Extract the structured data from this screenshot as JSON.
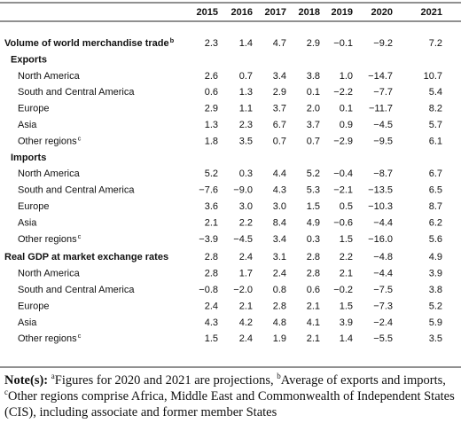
{
  "table": {
    "columns": [
      "2015",
      "2016",
      "2017",
      "2018",
      "2019",
      "2020",
      "2021"
    ],
    "sections": [
      {
        "label": "Volume of world merchandise trade",
        "note": "b",
        "values": [
          "2.3",
          "1.4",
          "4.7",
          "2.9",
          "−0.1",
          "−9.2",
          "7.2"
        ],
        "groups": [
          {
            "label": "Exports",
            "rows": [
              {
                "label": "North America",
                "values": [
                  "2.6",
                  "0.7",
                  "3.4",
                  "3.8",
                  "1.0",
                  "−14.7",
                  "10.7"
                ]
              },
              {
                "label": "South and Central America",
                "values": [
                  "0.6",
                  "1.3",
                  "2.9",
                  "0.1",
                  "−2.2",
                  "−7.7",
                  "5.4"
                ]
              },
              {
                "label": "Europe",
                "values": [
                  "2.9",
                  "1.1",
                  "3.7",
                  "2.0",
                  "0.1",
                  "−11.7",
                  "8.2"
                ]
              },
              {
                "label": "Asia",
                "values": [
                  "1.3",
                  "2.3",
                  "6.7",
                  "3.7",
                  "0.9",
                  "−4.5",
                  "5.7"
                ]
              },
              {
                "label": "Other regions",
                "note": "c",
                "values": [
                  "1.8",
                  "3.5",
                  "0.7",
                  "0.7",
                  "−2.9",
                  "−9.5",
                  "6.1"
                ]
              }
            ]
          },
          {
            "label": "Imports",
            "rows": [
              {
                "label": "North America",
                "values": [
                  "5.2",
                  "0.3",
                  "4.4",
                  "5.2",
                  "−0.4",
                  "−8.7",
                  "6.7"
                ]
              },
              {
                "label": "South and Central America",
                "values": [
                  "−7.6",
                  "−9.0",
                  "4.3",
                  "5.3",
                  "−2.1",
                  "−13.5",
                  "6.5"
                ]
              },
              {
                "label": "Europe",
                "values": [
                  "3.6",
                  "3.0",
                  "3.0",
                  "1.5",
                  "0.5",
                  "−10.3",
                  "8.7"
                ]
              },
              {
                "label": "Asia",
                "values": [
                  "2.1",
                  "2.2",
                  "8.4",
                  "4.9",
                  "−0.6",
                  "−4.4",
                  "6.2"
                ]
              },
              {
                "label": "Other regions",
                "note": "c",
                "values": [
                  "−3.9",
                  "−4.5",
                  "3.4",
                  "0.3",
                  "1.5",
                  "−16.0",
                  "5.6"
                ]
              }
            ]
          }
        ]
      },
      {
        "label": "Real GDP at market exchange rates",
        "values": [
          "2.8",
          "2.4",
          "3.1",
          "2.8",
          "2.2",
          "−4.8",
          "4.9"
        ],
        "groups": [
          {
            "rows": [
              {
                "label": "North America",
                "values": [
                  "2.8",
                  "1.7",
                  "2.4",
                  "2.8",
                  "2.1",
                  "−4.4",
                  "3.9"
                ]
              },
              {
                "label": "South and Central America",
                "values": [
                  "−0.8",
                  "−2.0",
                  "0.8",
                  "0.6",
                  "−0.2",
                  "−7.5",
                  "3.8"
                ]
              },
              {
                "label": "Europe",
                "values": [
                  "2.4",
                  "2.1",
                  "2.8",
                  "2.1",
                  "1.5",
                  "−7.3",
                  "5.2"
                ]
              },
              {
                "label": "Asia",
                "values": [
                  "4.3",
                  "4.2",
                  "4.8",
                  "4.1",
                  "3.9",
                  "−2.4",
                  "5.9"
                ]
              },
              {
                "label": "Other regions",
                "note": "c",
                "values": [
                  "1.5",
                  "2.4",
                  "1.9",
                  "2.1",
                  "1.4",
                  "−5.5",
                  "3.5"
                ]
              }
            ]
          }
        ]
      }
    ]
  },
  "notes": {
    "label": "Note(s):",
    "items": [
      {
        "mark": "a",
        "text": "Figures for 2020 and 2021 are projections,"
      },
      {
        "mark": "b",
        "text": "Average of exports and imports,"
      },
      {
        "mark": "c",
        "text": "Other regions comprise Africa, Middle East and Commonwealth of Independent States (CIS), including associate and former member States"
      }
    ]
  }
}
